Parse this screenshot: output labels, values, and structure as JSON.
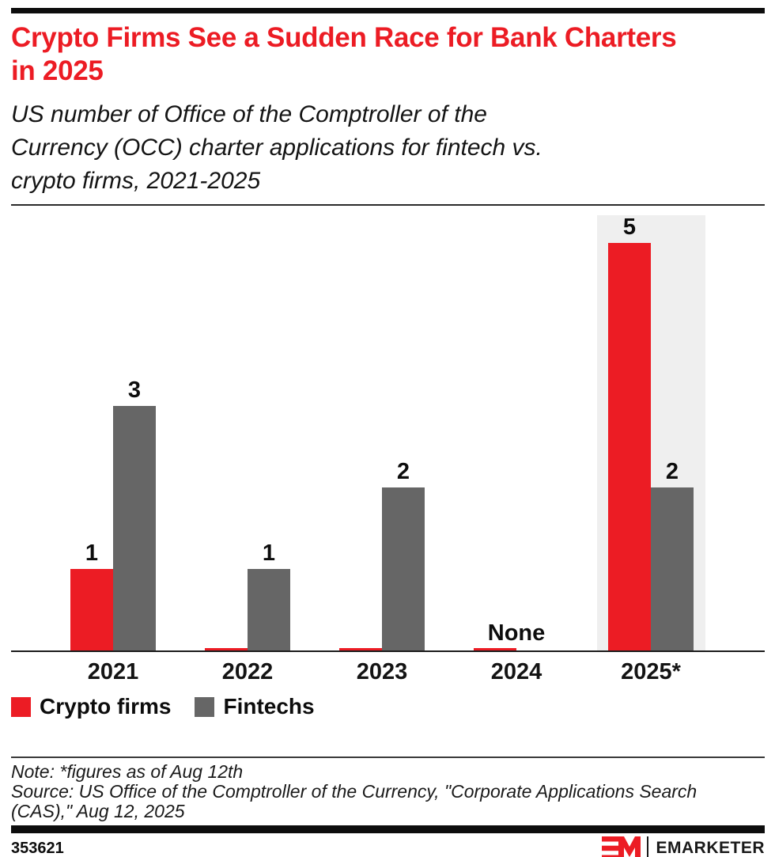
{
  "header": {
    "title_line1": "Crypto Firms See a Sudden Race for Bank Charters",
    "title_line2": "in 2025",
    "subtitle_lines": [
      "US number of Office of the Comptroller of the",
      "Currency (OCC) charter applications for fintech vs.",
      "crypto firms, 2021-2025"
    ],
    "accent_color": "#ec1c24"
  },
  "chart_data": {
    "type": "bar",
    "categories": [
      "2021",
      "2022",
      "2023",
      "2024",
      "2025*"
    ],
    "series": [
      {
        "name": "Crypto firms",
        "color": "#ec1c24",
        "values": [
          1,
          0,
          0,
          0,
          5
        ]
      },
      {
        "name": "Fintechs",
        "color": "#666666",
        "values": [
          3,
          1,
          2,
          0,
          2
        ]
      }
    ],
    "none_label": "None",
    "highlight_index": 4,
    "highlight_color": "#efefef",
    "ylim": [
      0,
      5
    ],
    "grid": false,
    "legend_position": "bottom"
  },
  "notes": {
    "note": "Note: *figures as of Aug 12th",
    "source_line1": "Source: US Office of the Comptroller of the Currency, \"Corporate Applications Search",
    "source_line2": "(CAS),\" Aug 12, 2025"
  },
  "footer": {
    "chart_id": "353621",
    "brand": "EMARKETER"
  }
}
